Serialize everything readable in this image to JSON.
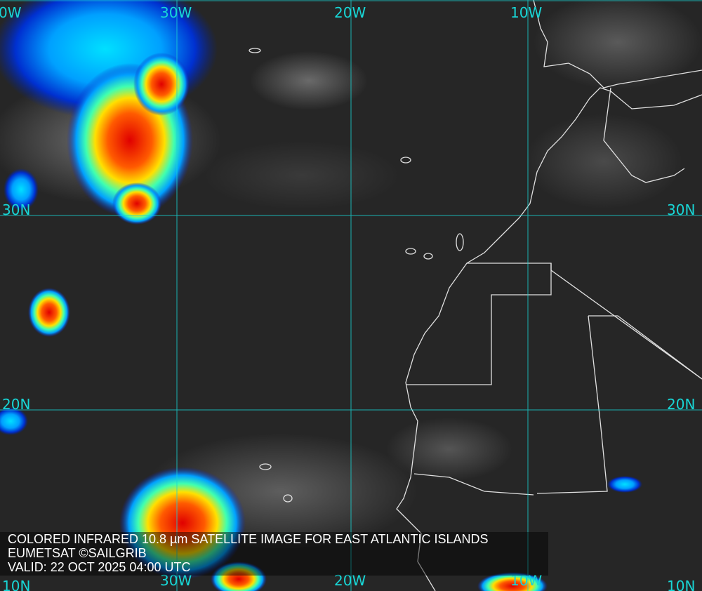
{
  "caption": {
    "line1": "COLORED INFRARED 10.8 µm SATELLITE IMAGE FOR EAST ATLANTIC ISLANDS",
    "line2": "EUMETSAT ©SAILGRIB",
    "line3": "VALID:  22 OCT 2025 04:00 UTC"
  },
  "grid": {
    "lon_top": [
      "0W",
      "30W",
      "20W",
      "10W"
    ],
    "lon_bottom": [
      "30W",
      "20W",
      "10W"
    ],
    "lat_left": [
      "30N",
      "20N",
      "10N"
    ],
    "lat_right": [
      "30N",
      "20N",
      "10N"
    ]
  },
  "colors": {
    "grid": "#18d6d6",
    "coast": "#e0e0e0",
    "cold_cloud_top": "#ff2a00",
    "cloud_mid": "#ffe000",
    "cloud_low": "#00c8ff"
  }
}
